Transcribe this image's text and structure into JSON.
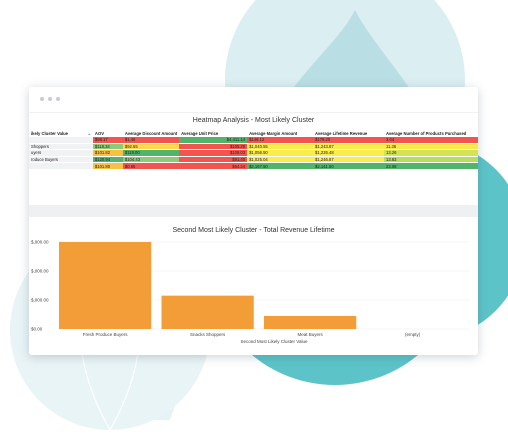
{
  "window": {
    "dots": [
      "dot",
      "dot",
      "dot"
    ]
  },
  "heatmap": {
    "title": "Heatmap Analysis - Most Likely Cluster",
    "columns": [
      "ikely Cluster Value",
      "AOV",
      "Average Discount Amount",
      "Average Unit Price",
      "Average Margin Amount",
      "Average Lifetime Revenue",
      "Average Number of Products Purchased"
    ],
    "rows": [
      {
        "label": "",
        "cells": [
          "$98.17",
          "$1.46",
          "$4,411.14",
          "$148.12",
          "$179.20",
          "3.04"
        ],
        "colors": [
          "#f2554f",
          "#f2554f",
          "#52b36b",
          "#f2554f",
          "#f2554f",
          "#f2554f"
        ]
      },
      {
        "label": "Shoppers",
        "cells": [
          "$118.34",
          "$92.55",
          "$105.29",
          "$1,040.55",
          "$1,243.87",
          "11.36"
        ],
        "colors": [
          "#8ccc79",
          "#ffd84f",
          "#f2554f",
          "#f9ec4f",
          "#f9ec4f",
          "#f7ea4f"
        ]
      },
      {
        "label": "uyers",
        "cells": [
          "$101.82",
          "$119.00",
          "$108.03",
          "$1,056.50",
          "$1,226.48",
          "13.26"
        ],
        "colors": [
          "#f7c145",
          "#52b36b",
          "#f2554f",
          "#f9ec4f",
          "#f9ec4f",
          "#d2e455"
        ]
      },
      {
        "label": "roduce Buyers",
        "cells": [
          "$120.94",
          "$104.43",
          "$91.40",
          "$1,025.04",
          "$1,246.87",
          "13.83"
        ],
        "colors": [
          "#52b36b",
          "#8ccc79",
          "#f2554f",
          "#f9ec4f",
          "#f9ec4f",
          "#b5de5c"
        ]
      },
      {
        "label": "",
        "cells": [
          "$101.80",
          "$0.86",
          "$54.24",
          "$2,167.50",
          "$2,141.50",
          "23.08"
        ],
        "colors": [
          "#f7c145",
          "#f2554f",
          "#f2554f",
          "#52b36b",
          "#52b36b",
          "#52b36b"
        ]
      }
    ]
  },
  "bar": {
    "title": "Second Most Likely Cluster - Total Revenue Lifetime"
  },
  "chart_data": {
    "type": "bar",
    "title": "Second Most Likely Cluster - Total Revenue Lifetime",
    "categories": [
      "Fresh Produce Buyers",
      "Snacks Shoppers",
      "Meat Buyers",
      "(empty)"
    ],
    "values": [
      3000,
      1150,
      450,
      0
    ],
    "ytick_labels": [
      "$0.00",
      "$,000.00",
      "$,000.00",
      "$,000.00"
    ],
    "ytick_values": [
      0,
      1000,
      2000,
      3000
    ],
    "ylim": [
      0,
      3000
    ],
    "xlabel": "Second Most Likely Cluster Value",
    "ylabel": "",
    "bar_color": "#f29d38"
  }
}
